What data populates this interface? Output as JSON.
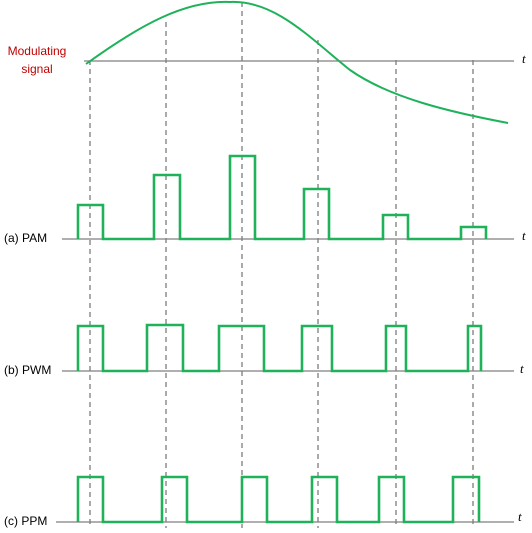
{
  "colors": {
    "signal": "#1fb25a",
    "axis": "#7f7f7f",
    "guide": "#555555",
    "label_accent": "#c00000"
  },
  "labels": {
    "modulating_line1": "Modulating",
    "modulating_line2": "signal",
    "pam": "(a) PAM",
    "pwm": "(b) PWM",
    "ppm": "(c) PPM",
    "t": "t"
  }
}
